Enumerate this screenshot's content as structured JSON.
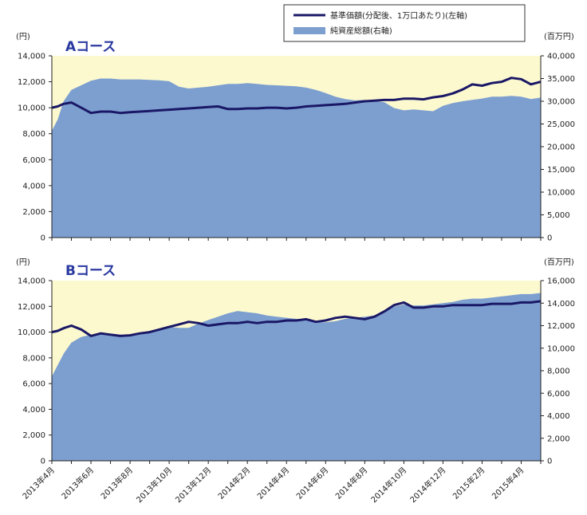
{
  "legend": {
    "line_label": "基準価額(分配後、1万口あたり)(左軸)",
    "area_label": "純資産総額(右軸)"
  },
  "colors": {
    "plot_bg": "#fdf9cf",
    "area": "#7d9fd0",
    "line": "#1a1866",
    "axis": "#222222"
  },
  "chart_data": [
    {
      "type": "line",
      "title": "Aコース",
      "left_unit": "(円)",
      "right_unit": "(百万円)",
      "left_axis": {
        "range": [
          0,
          14000
        ],
        "ticks": [
          "0",
          "2,000",
          "4,000",
          "6,000",
          "8,000",
          "10,000",
          "12,000",
          "14,000"
        ]
      },
      "right_axis": {
        "range": [
          0,
          40000
        ],
        "ticks": [
          "0",
          "5,000",
          "10,000",
          "15,000",
          "20,000",
          "25,000",
          "30,000",
          "35,000",
          "40,000"
        ]
      },
      "x": [
        0,
        0.3,
        0.6,
        1.0,
        1.5,
        2.0,
        2.5,
        3.0,
        3.5,
        4.0,
        4.5,
        5.0,
        5.5,
        6.0,
        6.5,
        7.0,
        7.5,
        8.0,
        8.5,
        9.0,
        9.5,
        10.0,
        10.5,
        11.0,
        11.5,
        12.0,
        12.5,
        13.0,
        13.5,
        14.0,
        14.5,
        15.0,
        15.5,
        16.0,
        16.5,
        17.0,
        17.5,
        18.0,
        18.5,
        19.0,
        19.5,
        20.0,
        20.5,
        21.0,
        21.5,
        22.0,
        22.5,
        23.0,
        23.5,
        24.0,
        24.5,
        25.0
      ],
      "series": [
        {
          "name": "基準価額(分配後、1万口あたり)(左軸)",
          "axis": "left",
          "values": [
            10000,
            10100,
            10300,
            10400,
            10000,
            9600,
            9700,
            9700,
            9600,
            9650,
            9700,
            9750,
            9800,
            9850,
            9900,
            9950,
            10000,
            10050,
            10100,
            9900,
            9900,
            9950,
            9950,
            10000,
            10000,
            9950,
            10000,
            10100,
            10150,
            10200,
            10250,
            10300,
            10400,
            10500,
            10550,
            10600,
            10600,
            10700,
            10700,
            10650,
            10800,
            10900,
            11100,
            11400,
            11800,
            11700,
            11900,
            12000,
            12300,
            12200,
            11800,
            12000
          ]
        },
        {
          "name": "純資産総額(右軸)",
          "axis": "right",
          "values": [
            23500,
            26000,
            30000,
            32500,
            33500,
            34500,
            35000,
            35000,
            34800,
            34800,
            34800,
            34700,
            34600,
            34400,
            33200,
            32800,
            33000,
            33200,
            33500,
            33800,
            33800,
            34000,
            33800,
            33600,
            33500,
            33400,
            33300,
            33000,
            32500,
            31800,
            31000,
            30500,
            30200,
            30300,
            30000,
            29800,
            28500,
            28000,
            28200,
            28000,
            27800,
            29000,
            29600,
            30000,
            30300,
            30600,
            31000,
            31000,
            31200,
            31000,
            30500,
            30800
          ]
        }
      ]
    },
    {
      "type": "line",
      "title": "Bコース",
      "left_unit": "(円)",
      "right_unit": "(百万円)",
      "left_axis": {
        "range": [
          0,
          14000
        ],
        "ticks": [
          "0",
          "2,000",
          "4,000",
          "6,000",
          "8,000",
          "10,000",
          "12,000",
          "14,000"
        ]
      },
      "right_axis": {
        "range": [
          0,
          16000
        ],
        "ticks": [
          "0",
          "2,000",
          "4,000",
          "6,000",
          "8,000",
          "10,000",
          "12,000",
          "14,000",
          "16,000"
        ]
      },
      "x": [
        0,
        0.3,
        0.6,
        1.0,
        1.5,
        2.0,
        2.5,
        3.0,
        3.5,
        4.0,
        4.5,
        5.0,
        5.5,
        6.0,
        6.5,
        7.0,
        7.5,
        8.0,
        8.5,
        9.0,
        9.5,
        10.0,
        10.5,
        11.0,
        11.5,
        12.0,
        12.5,
        13.0,
        13.5,
        14.0,
        14.5,
        15.0,
        15.5,
        16.0,
        16.5,
        17.0,
        17.5,
        18.0,
        18.5,
        19.0,
        19.5,
        20.0,
        20.5,
        21.0,
        21.5,
        22.0,
        22.5,
        23.0,
        23.5,
        24.0,
        24.5,
        25.0
      ],
      "series": [
        {
          "name": "基準価額(分配後、1万口あたり)(左軸)",
          "axis": "left",
          "values": [
            10000,
            10100,
            10300,
            10500,
            10200,
            9700,
            9900,
            9800,
            9700,
            9750,
            9900,
            10000,
            10200,
            10400,
            10600,
            10800,
            10700,
            10500,
            10600,
            10700,
            10700,
            10800,
            10700,
            10800,
            10800,
            10900,
            10900,
            11000,
            10800,
            10900,
            11100,
            11200,
            11100,
            11000,
            11200,
            11600,
            12100,
            12300,
            11900,
            11900,
            12000,
            12000,
            12100,
            12100,
            12100,
            12100,
            12200,
            12200,
            12200,
            12300,
            12300,
            12400
          ]
        },
        {
          "name": "純資産総額(右軸)",
          "axis": "right",
          "values": [
            7500,
            8500,
            9500,
            10500,
            11000,
            11200,
            11300,
            11300,
            11200,
            11200,
            11300,
            11500,
            11700,
            11900,
            11800,
            11800,
            12200,
            12500,
            12800,
            13100,
            13300,
            13200,
            13100,
            12900,
            12800,
            12700,
            12600,
            12500,
            12300,
            12300,
            12400,
            12600,
            12700,
            12800,
            12900,
            13300,
            13700,
            13900,
            13800,
            13800,
            13900,
            14000,
            14100,
            14300,
            14400,
            14400,
            14500,
            14600,
            14700,
            14800,
            14800,
            14900
          ]
        }
      ]
    }
  ],
  "x_axis": {
    "labels": [
      "2013年4月",
      "2013年6月",
      "2013年8月",
      "2013年10月",
      "2013年12月",
      "2014年2月",
      "2014年4月",
      "2014年6月",
      "2014年8月",
      "2014年10月",
      "2014年12月",
      "2015年2月",
      "2015年4月"
    ],
    "label_positions": [
      0,
      2,
      4,
      6,
      8,
      10,
      12,
      14,
      16,
      18,
      20,
      22,
      24
    ],
    "range": [
      0,
      25
    ]
  }
}
